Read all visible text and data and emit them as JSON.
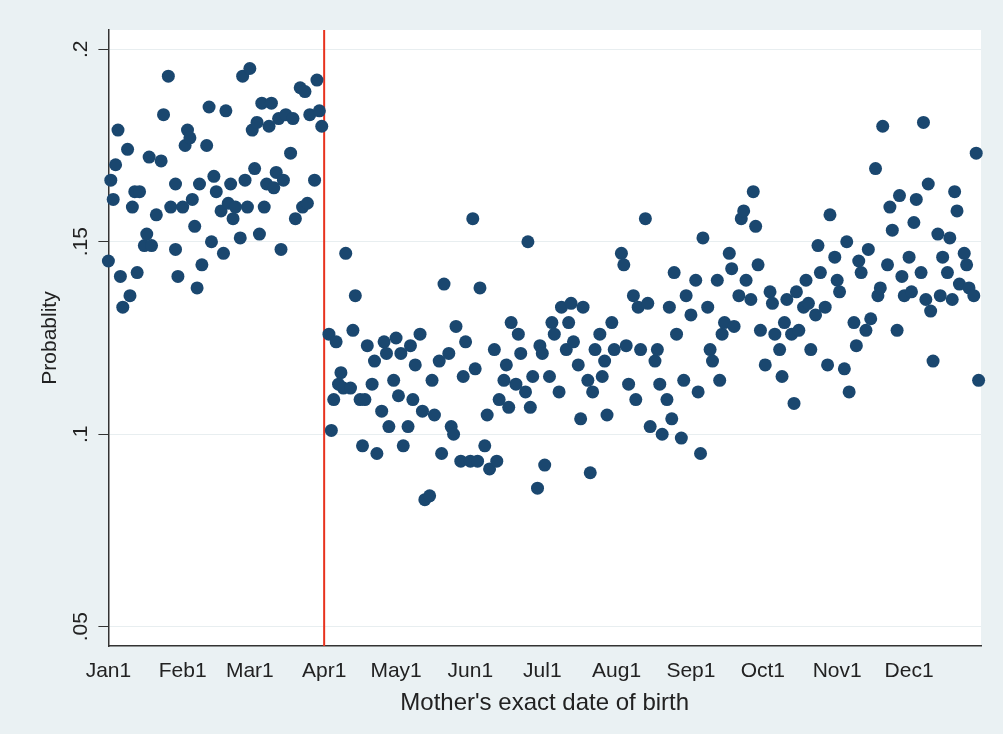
{
  "chart_data": {
    "type": "scatter",
    "xlabel": "Mother's exact date of birth",
    "ylabel": "Probablity",
    "xlim": [
      "--01-01",
      "--12-31"
    ],
    "ylim": [
      0.045,
      0.205
    ],
    "xticks": [
      {
        "value": "--01-01",
        "label": "Jan1"
      },
      {
        "value": "--02-01",
        "label": "Feb1"
      },
      {
        "value": "--03-01",
        "label": "Mar1"
      },
      {
        "value": "--04-01",
        "label": "Apr1"
      },
      {
        "value": "--05-01",
        "label": "May1"
      },
      {
        "value": "--06-01",
        "label": "Jun1"
      },
      {
        "value": "--07-01",
        "label": "Jul1"
      },
      {
        "value": "--08-01",
        "label": "Aug1"
      },
      {
        "value": "--09-01",
        "label": "Sep1"
      },
      {
        "value": "--10-01",
        "label": "Oct1"
      },
      {
        "value": "--11-01",
        "label": "Nov1"
      },
      {
        "value": "--12-01",
        "label": "Dec1"
      }
    ],
    "yticks": [
      {
        "value": 0.05,
        "label": ".05"
      },
      {
        "value": 0.1,
        "label": ".1"
      },
      {
        "value": 0.15,
        "label": ".15"
      },
      {
        "value": 0.2,
        "label": ".2"
      }
    ],
    "grid": "y",
    "legend": false,
    "marker": "circle",
    "ref_lines": [
      {
        "axis": "x",
        "value": "--04-01",
        "color": "#e8321e"
      }
    ],
    "series": [
      {
        "color": "#1a476f",
        "x": [
          "--01-01",
          "--01-02",
          "--01-03",
          "--01-04",
          "--01-05",
          "--01-06",
          "--01-07",
          "--01-09",
          "--01-10",
          "--01-11",
          "--01-12",
          "--01-13",
          "--01-14",
          "--01-16",
          "--01-17",
          "--01-18",
          "--01-19",
          "--01-21",
          "--01-23",
          "--01-24",
          "--01-26",
          "--01-27",
          "--01-29",
          "--01-29",
          "--01-30",
          "--02-01",
          "--02-02",
          "--02-03",
          "--02-04",
          "--02-05",
          "--02-06",
          "--02-07",
          "--02-08",
          "--02-09",
          "--02-11",
          "--02-12",
          "--02-13",
          "--02-14",
          "--02-15",
          "--02-17",
          "--02-18",
          "--02-19",
          "--02-20",
          "--02-21",
          "--02-22",
          "--02-23",
          "--02-25",
          "--02-26",
          "--02-27",
          "--02-28",
          "--03-01",
          "--03-02",
          "--03-03",
          "--03-04",
          "--03-05",
          "--03-06",
          "--03-07",
          "--03-08",
          "--03-09",
          "--03-10",
          "--03-11",
          "--03-12",
          "--03-13",
          "--03-14",
          "--03-15",
          "--03-16",
          "--03-18",
          "--03-19",
          "--03-20",
          "--03-22",
          "--03-23",
          "--03-24",
          "--03-25",
          "--03-26",
          "--03-28",
          "--03-29",
          "--03-30",
          "--03-31",
          "--04-03",
          "--04-04",
          "--04-05",
          "--04-06",
          "--04-07",
          "--04-08",
          "--04-09",
          "--04-10",
          "--04-12",
          "--04-13",
          "--04-14",
          "--04-16",
          "--04-17",
          "--04-18",
          "--04-19",
          "--04-21",
          "--04-22",
          "--04-23",
          "--04-25",
          "--04-26",
          "--04-27",
          "--04-28",
          "--04-30",
          "--05-01",
          "--05-02",
          "--05-03",
          "--05-04",
          "--05-06",
          "--05-07",
          "--05-08",
          "--05-09",
          "--05-11",
          "--05-12",
          "--05-13",
          "--05-15",
          "--05-16",
          "--05-17",
          "--05-19",
          "--05-20",
          "--05-21",
          "--05-23",
          "--05-24",
          "--05-25",
          "--05-26",
          "--05-28",
          "--05-29",
          "--05-30",
          "--06-01",
          "--06-02",
          "--06-03",
          "--06-04",
          "--06-05",
          "--06-07",
          "--06-08",
          "--06-09",
          "--06-11",
          "--06-12",
          "--06-13",
          "--06-15",
          "--06-16",
          "--06-17",
          "--06-18",
          "--06-20",
          "--06-21",
          "--06-22",
          "--06-24",
          "--06-25",
          "--06-26",
          "--06-27",
          "--06-29",
          "--06-30",
          "--07-01",
          "--07-02",
          "--07-04",
          "--07-05",
          "--07-06",
          "--07-08",
          "--07-09",
          "--07-11",
          "--07-12",
          "--07-13",
          "--07-14",
          "--07-16",
          "--07-17",
          "--07-18",
          "--07-20",
          "--07-21",
          "--07-22",
          "--07-23",
          "--07-25",
          "--07-26",
          "--07-27",
          "--07-28",
          "--07-30",
          "--07-31",
          "--08-03",
          "--08-04",
          "--08-05",
          "--08-06",
          "--08-08",
          "--08-09",
          "--08-10",
          "--08-11",
          "--08-13",
          "--08-14",
          "--08-15",
          "--08-17",
          "--08-18",
          "--08-19",
          "--08-20",
          "--08-22",
          "--08-23",
          "--08-24",
          "--08-25",
          "--08-26",
          "--08-28",
          "--08-29",
          "--08-30",
          "--09-01",
          "--09-03",
          "--09-04",
          "--09-05",
          "--09-06",
          "--09-08",
          "--09-09",
          "--09-10",
          "--09-12",
          "--09-13",
          "--09-14",
          "--09-15",
          "--09-17",
          "--09-18",
          "--09-19",
          "--09-21",
          "--09-22",
          "--09-23",
          "--09-24",
          "--09-26",
          "--09-27",
          "--09-28",
          "--09-29",
          "--09-30",
          "--10-02",
          "--10-04",
          "--10-05",
          "--10-06",
          "--10-08",
          "--10-09",
          "--10-10",
          "--10-11",
          "--10-13",
          "--10-14",
          "--10-15",
          "--10-16",
          "--10-18",
          "--10-19",
          "--10-20",
          "--10-21",
          "--10-23",
          "--10-24",
          "--10-25",
          "--10-27",
          "--10-28",
          "--10-29",
          "--10-31",
          "--11-01",
          "--11-02",
          "--11-04",
          "--11-05",
          "--11-06",
          "--11-08",
          "--11-09",
          "--11-10",
          "--11-11",
          "--11-13",
          "--11-14",
          "--11-15",
          "--11-17",
          "--11-18",
          "--11-19",
          "--11-20",
          "--11-22",
          "--11-23",
          "--11-24",
          "--11-26",
          "--11-27",
          "--11-28",
          "--11-29",
          "--12-01",
          "--12-02",
          "--12-03",
          "--12-04",
          "--12-06",
          "--12-07",
          "--12-08",
          "--12-09",
          "--12-10",
          "--12-11",
          "--12-13",
          "--12-14",
          "--12-15",
          "--12-17",
          "--12-18",
          "--12-19",
          "--12-20",
          "--12-21",
          "--12-22",
          "--12-24",
          "--12-25",
          "--12-26",
          "--12-28",
          "--12-29",
          "--12-30"
        ],
        "values": [
          0.145,
          0.166,
          0.161,
          0.17,
          0.179,
          0.141,
          0.133,
          0.174,
          0.136,
          0.159,
          0.163,
          0.142,
          0.163,
          0.149,
          0.152,
          0.172,
          0.149,
          0.157,
          0.171,
          0.183,
          0.193,
          0.159,
          0.165,
          0.148,
          0.141,
          0.159,
          0.175,
          0.179,
          0.177,
          0.161,
          0.154,
          0.138,
          0.165,
          0.144,
          0.175,
          0.185,
          0.15,
          0.167,
          0.163,
          0.158,
          0.147,
          0.184,
          0.16,
          0.165,
          0.156,
          0.159,
          0.151,
          0.193,
          0.166,
          0.159,
          0.195,
          0.179,
          0.169,
          0.181,
          0.152,
          0.186,
          0.159,
          0.165,
          0.18,
          0.186,
          0.164,
          0.168,
          0.182,
          0.148,
          0.166,
          0.183,
          0.173,
          0.182,
          0.156,
          0.19,
          0.159,
          0.189,
          0.16,
          0.183,
          0.166,
          0.192,
          0.184,
          0.18,
          0.126,
          0.101,
          0.109,
          0.124,
          0.113,
          0.116,
          0.112,
          0.147,
          0.112,
          0.127,
          0.136,
          0.109,
          0.097,
          0.109,
          0.123,
          0.113,
          0.119,
          0.095,
          0.106,
          0.124,
          0.121,
          0.102,
          0.114,
          0.125,
          0.11,
          0.121,
          0.097,
          0.102,
          0.123,
          0.109,
          0.118,
          0.126,
          0.106,
          0.083,
          0.084,
          0.114,
          0.105,
          0.119,
          0.095,
          0.139,
          0.121,
          0.102,
          0.1,
          0.128,
          0.093,
          0.115,
          0.124,
          0.093,
          0.156,
          0.117,
          0.093,
          0.138,
          0.097,
          0.105,
          0.091,
          0.122,
          0.093,
          0.109,
          0.114,
          0.118,
          0.107,
          0.129,
          0.113,
          0.126,
          0.121,
          0.111,
          0.15,
          0.107,
          0.115,
          0.086,
          0.123,
          0.121,
          0.092,
          0.115,
          0.129,
          0.126,
          0.111,
          0.133,
          0.122,
          0.129,
          0.134,
          0.124,
          0.118,
          0.104,
          0.133,
          0.114,
          0.09,
          0.111,
          0.122,
          0.126,
          0.115,
          0.119,
          0.105,
          0.129,
          0.122,
          0.147,
          0.144,
          0.123,
          0.113,
          0.136,
          0.109,
          0.133,
          0.122,
          0.156,
          0.134,
          0.102,
          0.119,
          0.122,
          0.113,
          0.1,
          0.109,
          0.133,
          0.104,
          0.142,
          0.126,
          0.099,
          0.114,
          0.136,
          0.131,
          0.14,
          0.111,
          0.095,
          0.151,
          0.133,
          0.122,
          0.119,
          0.14,
          0.114,
          0.126,
          0.129,
          0.147,
          0.143,
          0.128,
          0.136,
          0.156,
          0.158,
          0.14,
          0.135,
          0.163,
          0.154,
          0.144,
          0.127,
          0.118,
          0.137,
          0.134,
          0.126,
          0.122,
          0.115,
          0.129,
          0.135,
          0.126,
          0.108,
          0.137,
          0.127,
          0.133,
          0.14,
          0.134,
          0.122,
          0.131,
          0.149,
          0.142,
          0.133,
          0.118,
          0.157,
          0.146,
          0.14,
          0.137,
          0.117,
          0.15,
          0.111,
          0.129,
          0.123,
          0.145,
          0.142,
          0.127,
          0.148,
          0.13,
          0.169,
          0.136,
          0.138,
          0.18,
          0.144,
          0.159,
          0.153,
          0.127,
          0.162,
          0.141,
          0.136,
          0.146,
          0.137,
          0.155,
          0.161,
          0.142,
          0.181,
          0.135,
          0.165,
          0.132,
          0.119,
          0.152,
          0.136,
          0.146,
          0.142,
          0.151,
          0.135,
          0.163,
          0.158,
          0.139,
          0.147,
          0.144,
          0.138,
          0.136,
          0.173,
          0.114
        ]
      }
    ]
  }
}
